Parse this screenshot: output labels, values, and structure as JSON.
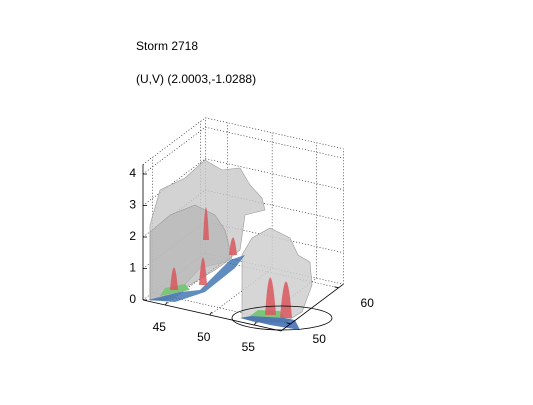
{
  "chart_data": {
    "type": "isosurface3d",
    "title": "Storm 2718",
    "subtitle": "(U,V) (2.0003,-1.0288)",
    "xlim": [
      42.5,
      58
    ],
    "xticks": [
      45,
      50,
      55
    ],
    "ylim": [
      48,
      61
    ],
    "yticks": [
      50,
      60
    ],
    "zlim": [
      0,
      4.3
    ],
    "zticks": [
      0,
      1,
      2,
      3,
      4
    ],
    "grid": true
  }
}
